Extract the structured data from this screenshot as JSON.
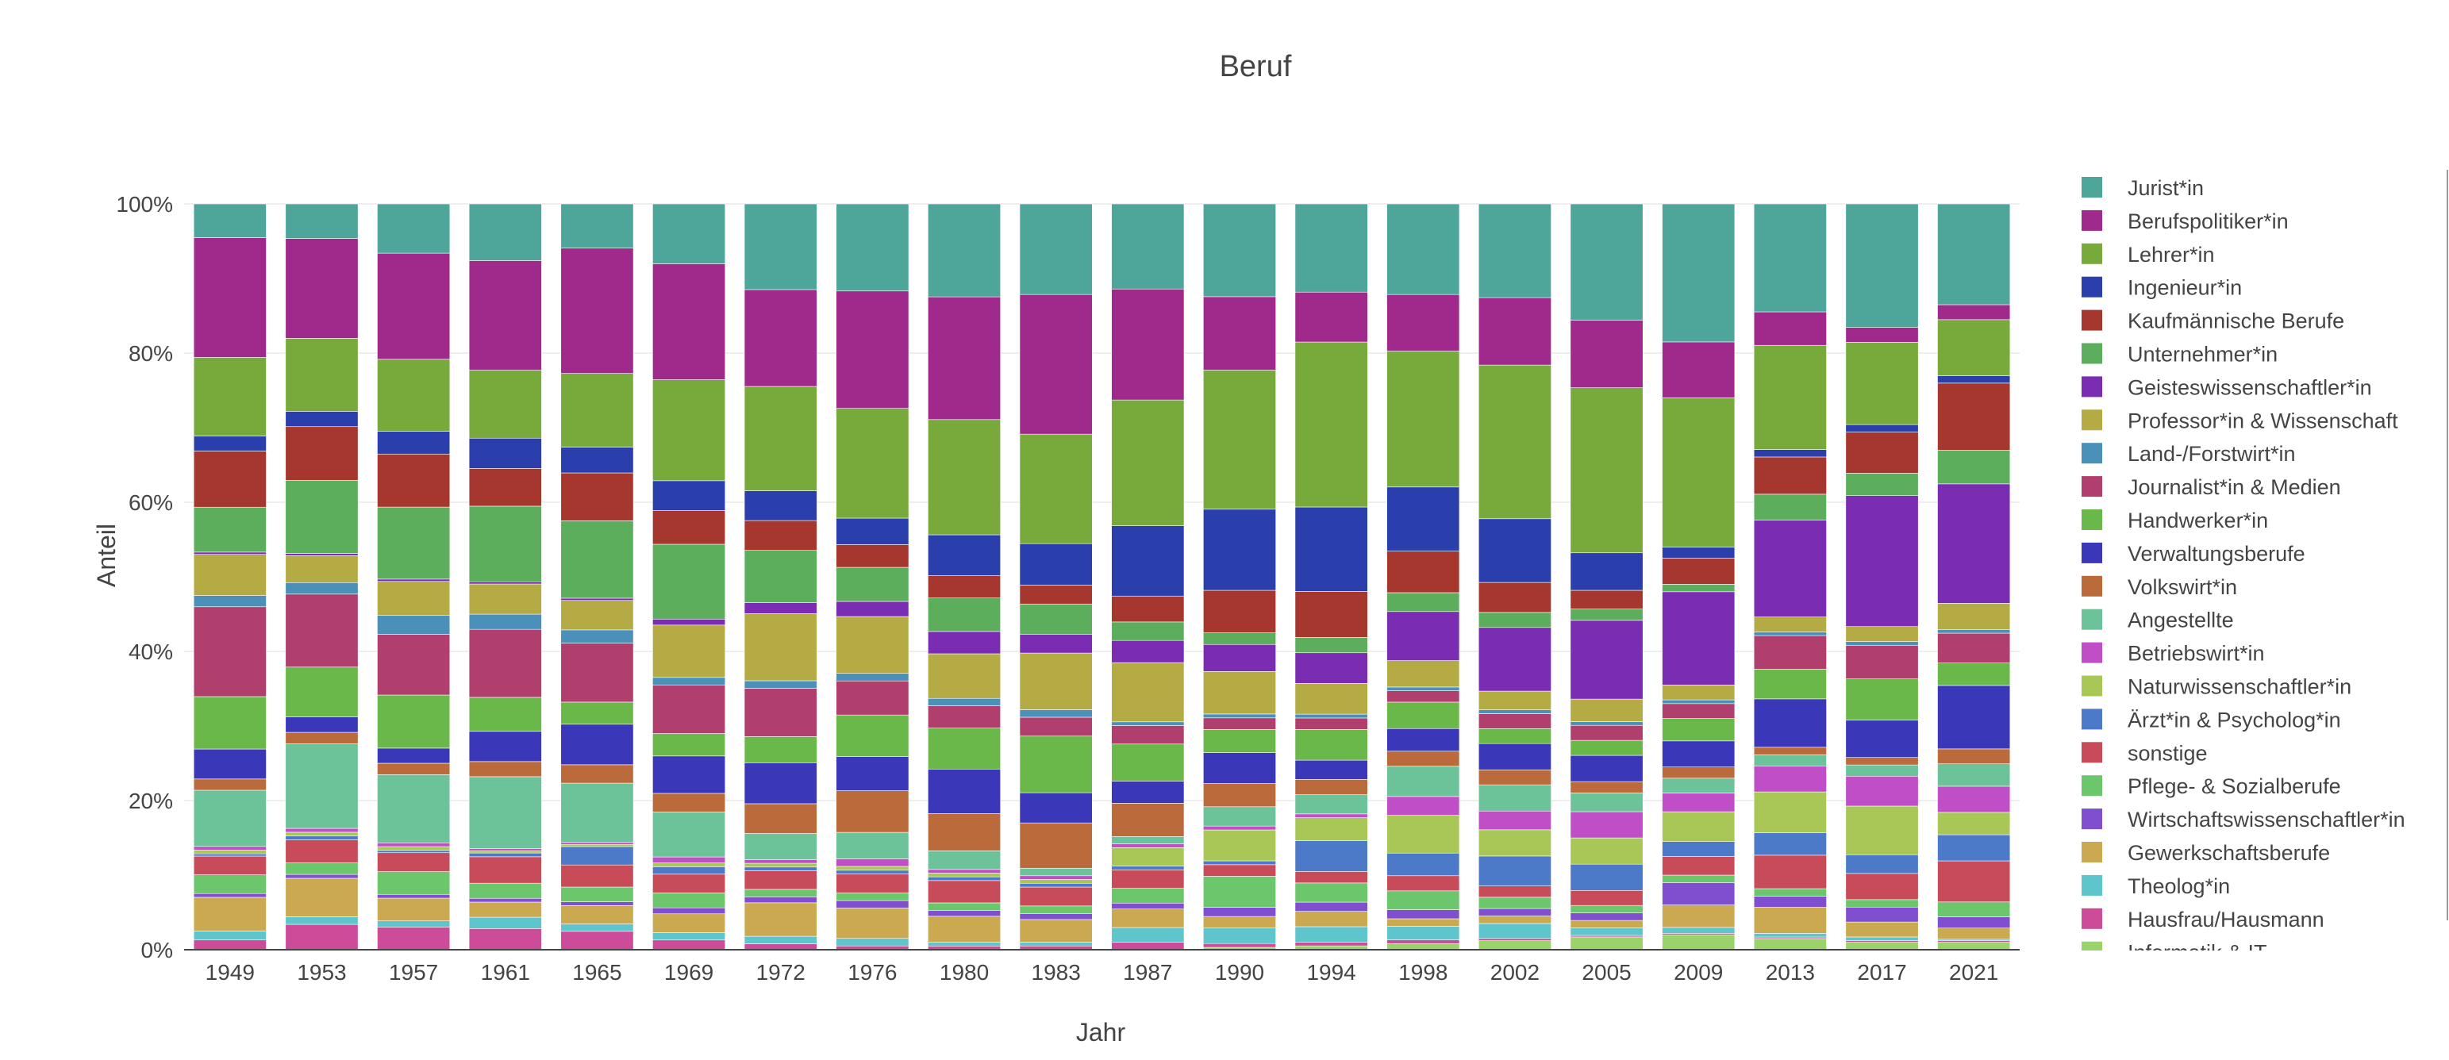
{
  "chart_data": {
    "type": "bar",
    "stacked": true,
    "normalized": true,
    "title": "Beruf",
    "xlabel": "Jahr",
    "ylabel": "Anteil",
    "ylim": [
      0,
      1
    ],
    "y_ticks": [
      "0%",
      "20%",
      "40%",
      "60%",
      "80%",
      "100%"
    ],
    "legend_position": "right",
    "categories": [
      "1949",
      "1953",
      "1957",
      "1961",
      "1965",
      "1969",
      "1972",
      "1976",
      "1980",
      "1983",
      "1987",
      "1990",
      "1994",
      "1998",
      "2002",
      "2005",
      "2009",
      "2013",
      "2017",
      "2021"
    ],
    "series": [
      {
        "name": "Informatik & IT",
        "color": "#9bd36b",
        "values": [
          0,
          0,
          0,
          0,
          0,
          0,
          0,
          0,
          0,
          0,
          0,
          0.003,
          0.005,
          0.008,
          0.012,
          0.017,
          0.02,
          0.015,
          0.01,
          0.01
        ]
      },
      {
        "name": "Hausfrau/Hausmann",
        "color": "#cc4c9a",
        "values": [
          0.013,
          0.033,
          0.03,
          0.028,
          0.025,
          0.013,
          0.008,
          0.005,
          0.005,
          0.005,
          0.01,
          0.005,
          0.005,
          0.005,
          0.003,
          0.002,
          0.002,
          0.002,
          0.002,
          0.002
        ]
      },
      {
        "name": "Theolog*in",
        "color": "#5fc5cc",
        "values": [
          0.012,
          0.01,
          0.008,
          0.015,
          0.01,
          0.01,
          0.01,
          0.01,
          0.005,
          0.005,
          0.02,
          0.02,
          0.02,
          0.018,
          0.02,
          0.01,
          0.008,
          0.005,
          0.005,
          0.002
        ]
      },
      {
        "name": "Gewerkschaftsberufe",
        "color": "#cba950",
        "values": [
          0.045,
          0.05,
          0.03,
          0.02,
          0.025,
          0.025,
          0.045,
          0.04,
          0.035,
          0.03,
          0.025,
          0.015,
          0.02,
          0.01,
          0.01,
          0.01,
          0.03,
          0.035,
          0.02,
          0.015
        ]
      },
      {
        "name": "Wirtschaftswissenschaftler*in",
        "color": "#7f4fcf",
        "values": [
          0.005,
          0.005,
          0.005,
          0.005,
          0.005,
          0.008,
          0.008,
          0.01,
          0.008,
          0.008,
          0.008,
          0.012,
          0.012,
          0.012,
          0.01,
          0.01,
          0.03,
          0.015,
          0.02,
          0.015
        ]
      },
      {
        "name": "Pflege- & Sozialberufe",
        "color": "#6cc66c",
        "values": [
          0.025,
          0.015,
          0.03,
          0.02,
          0.02,
          0.02,
          0.01,
          0.01,
          0.01,
          0.01,
          0.02,
          0.04,
          0.025,
          0.025,
          0.015,
          0.01,
          0.01,
          0.01,
          0.01,
          0.02
        ]
      },
      {
        "name": "sonstige",
        "color": "#c84b5a",
        "values": [
          0.025,
          0.03,
          0.025,
          0.035,
          0.03,
          0.025,
          0.025,
          0.025,
          0.03,
          0.025,
          0.025,
          0.015,
          0.015,
          0.02,
          0.015,
          0.02,
          0.025,
          0.045,
          0.035,
          0.055
        ]
      },
      {
        "name": "Ärzt*in & Psycholog*in",
        "color": "#4c7ac8",
        "values": [
          0.003,
          0.005,
          0.003,
          0.005,
          0.025,
          0.01,
          0.005,
          0.005,
          0.005,
          0.005,
          0.005,
          0.005,
          0.04,
          0.03,
          0.04,
          0.035,
          0.02,
          0.03,
          0.025,
          0.035
        ]
      },
      {
        "name": "Naturwissenschaftler*in",
        "color": "#a8c757",
        "values": [
          0.005,
          0.005,
          0.005,
          0.003,
          0.003,
          0.005,
          0.005,
          0.005,
          0.005,
          0.005,
          0.025,
          0.04,
          0.03,
          0.05,
          0.035,
          0.035,
          0.04,
          0.055,
          0.065,
          0.03
        ]
      },
      {
        "name": "Betriebswirt*in",
        "color": "#c04fc7",
        "values": [
          0.005,
          0.005,
          0.005,
          0.003,
          0.003,
          0.008,
          0.005,
          0.01,
          0.005,
          0.005,
          0.005,
          0.005,
          0.005,
          0.025,
          0.025,
          0.035,
          0.025,
          0.035,
          0.04,
          0.035
        ]
      },
      {
        "name": "Angestellte",
        "color": "#6cc39a",
        "values": [
          0.075,
          0.11,
          0.09,
          0.095,
          0.08,
          0.06,
          0.035,
          0.035,
          0.025,
          0.01,
          0.01,
          0.025,
          0.025,
          0.04,
          0.035,
          0.025,
          0.02,
          0.015,
          0.015,
          0.03
        ]
      },
      {
        "name": "Volkswirt*in",
        "color": "#bb6a3c",
        "values": [
          0.015,
          0.015,
          0.015,
          0.02,
          0.025,
          0.025,
          0.04,
          0.055,
          0.05,
          0.06,
          0.045,
          0.03,
          0.02,
          0.02,
          0.02,
          0.015,
          0.015,
          0.01,
          0.01,
          0.02
        ]
      },
      {
        "name": "Verwaltungsberufe",
        "color": "#3a38b8",
        "values": [
          0.04,
          0.02,
          0.02,
          0.04,
          0.055,
          0.05,
          0.055,
          0.045,
          0.06,
          0.04,
          0.03,
          0.04,
          0.025,
          0.03,
          0.035,
          0.035,
          0.035,
          0.065,
          0.05,
          0.085
        ]
      },
      {
        "name": "Handwerker*in",
        "color": "#6bb84a",
        "values": [
          0.07,
          0.065,
          0.07,
          0.045,
          0.03,
          0.03,
          0.035,
          0.055,
          0.055,
          0.075,
          0.05,
          0.03,
          0.04,
          0.035,
          0.02,
          0.02,
          0.03,
          0.04,
          0.055,
          0.03
        ]
      },
      {
        "name": "Journalist*in & Medien",
        "color": "#b03f6e",
        "values": [
          0.12,
          0.095,
          0.08,
          0.09,
          0.08,
          0.065,
          0.065,
          0.045,
          0.03,
          0.025,
          0.025,
          0.015,
          0.015,
          0.015,
          0.02,
          0.02,
          0.02,
          0.045,
          0.045,
          0.04
        ]
      },
      {
        "name": "Land-/Forstwirt*in",
        "color": "#4a90b8",
        "values": [
          0.015,
          0.015,
          0.025,
          0.02,
          0.018,
          0.01,
          0.01,
          0.01,
          0.01,
          0.01,
          0.005,
          0.005,
          0.005,
          0.005,
          0.005,
          0.005,
          0.005,
          0.005,
          0.005,
          0.005
        ]
      },
      {
        "name": "Professor*in & Wissenschaft",
        "color": "#b5ab44",
        "values": [
          0.055,
          0.035,
          0.045,
          0.04,
          0.04,
          0.07,
          0.09,
          0.075,
          0.06,
          0.075,
          0.08,
          0.055,
          0.04,
          0.035,
          0.025,
          0.03,
          0.02,
          0.02,
          0.02,
          0.035
        ]
      },
      {
        "name": "Geisteswissenschaftler*in",
        "color": "#7a2db2",
        "values": [
          0.003,
          0.003,
          0.003,
          0.003,
          0.003,
          0.008,
          0.015,
          0.02,
          0.03,
          0.025,
          0.03,
          0.035,
          0.04,
          0.065,
          0.085,
          0.105,
          0.125,
          0.13,
          0.175,
          0.16
        ]
      },
      {
        "name": "Unternehmer*in",
        "color": "#5cad5c",
        "values": [
          0.06,
          0.095,
          0.095,
          0.1,
          0.105,
          0.1,
          0.07,
          0.045,
          0.045,
          0.04,
          0.025,
          0.015,
          0.02,
          0.025,
          0.02,
          0.015,
          0.01,
          0.035,
          0.03,
          0.045
        ]
      },
      {
        "name": "Kaufmännische Berufe",
        "color": "#a6372f",
        "values": [
          0.075,
          0.07,
          0.07,
          0.05,
          0.065,
          0.045,
          0.04,
          0.03,
          0.03,
          0.025,
          0.035,
          0.055,
          0.06,
          0.055,
          0.04,
          0.025,
          0.035,
          0.05,
          0.055,
          0.09
        ]
      },
      {
        "name": "Ingenieur*in",
        "color": "#2b3fac",
        "values": [
          0.02,
          0.02,
          0.03,
          0.04,
          0.035,
          0.04,
          0.04,
          0.035,
          0.055,
          0.055,
          0.095,
          0.105,
          0.11,
          0.085,
          0.085,
          0.05,
          0.015,
          0.01,
          0.01,
          0.01
        ]
      },
      {
        "name": "Lehrer*in",
        "color": "#77aa3b",
        "values": [
          0.105,
          0.095,
          0.095,
          0.09,
          0.1,
          0.135,
          0.14,
          0.145,
          0.155,
          0.145,
          0.17,
          0.18,
          0.215,
          0.18,
          0.205,
          0.22,
          0.2,
          0.14,
          0.11,
          0.075
        ]
      },
      {
        "name": "Berufspolitiker*in",
        "color": "#a02a8c",
        "values": [
          0.16,
          0.13,
          0.14,
          0.145,
          0.17,
          0.155,
          0.13,
          0.155,
          0.165,
          0.185,
          0.15,
          0.095,
          0.065,
          0.075,
          0.09,
          0.09,
          0.075,
          0.045,
          0.02,
          0.02
        ]
      },
      {
        "name": "Jurist*in",
        "color": "#4ea69b",
        "values": [
          0.045,
          0.045,
          0.065,
          0.075,
          0.06,
          0.08,
          0.115,
          0.115,
          0.125,
          0.12,
          0.115,
          0.12,
          0.115,
          0.12,
          0.125,
          0.155,
          0.185,
          0.145,
          0.165,
          0.135
        ]
      }
    ],
    "legend_order": [
      "Jurist*in",
      "Berufspolitiker*in",
      "Lehrer*in",
      "Ingenieur*in",
      "Kaufmännische Berufe",
      "Unternehmer*in",
      "Geisteswissenschaftler*in",
      "Professor*in & Wissenschaft",
      "Land-/Forstwirt*in",
      "Journalist*in & Medien",
      "Handwerker*in",
      "Verwaltungsberufe",
      "Volkswirt*in",
      "Angestellte",
      "Betriebswirt*in",
      "Naturwissenschaftler*in",
      "Ärzt*in & Psycholog*in",
      "sonstige",
      "Pflege- & Sozialberufe",
      "Wirtschaftswissenschaftler*in",
      "Gewerkschaftsberufe",
      "Theolog*in",
      "Hausfrau/Hausmann",
      "Informatik & IT"
    ]
  }
}
